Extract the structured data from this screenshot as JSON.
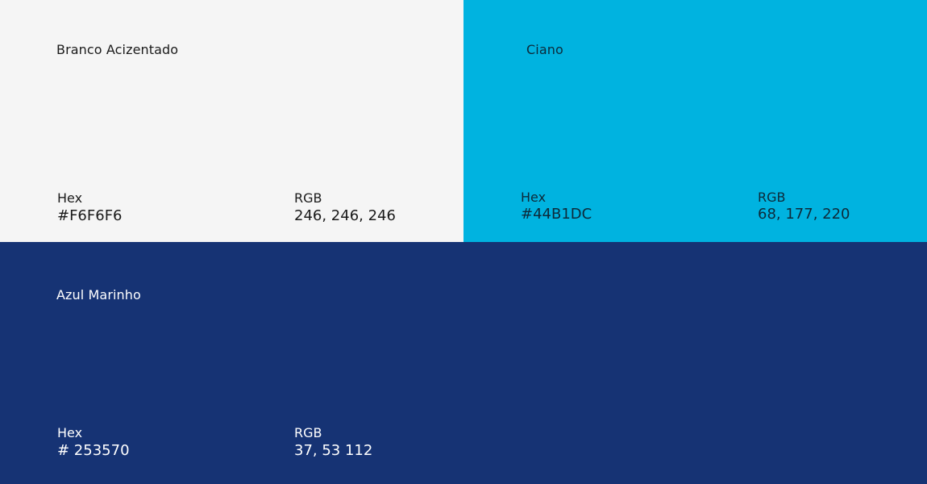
{
  "swatches": [
    {
      "name": "Branco Acizentado",
      "hex_label": "Hex",
      "hex_value": "#F6F6F6",
      "rgb_label": "RGB",
      "rgb_value": "246, 246, 246",
      "background": "#F5F5F5",
      "text_color": "#1A1A1A"
    },
    {
      "name": "Ciano",
      "hex_label": "Hex",
      "hex_value": "#44B1DC",
      "rgb_label": "RGB",
      "rgb_value": "68, 177, 220",
      "background": "#00B3E0",
      "text_color": "#0D2A3A"
    },
    {
      "name": "Azul Marinho",
      "hex_label": "Hex",
      "hex_value": "# 253570",
      "rgb_label": "RGB",
      "rgb_value": "37, 53  112",
      "background": "#163374",
      "text_color": "#FFFFFF"
    }
  ]
}
